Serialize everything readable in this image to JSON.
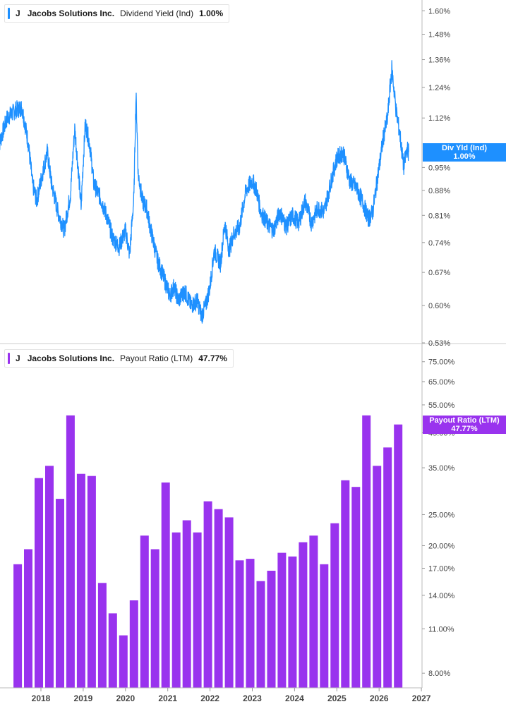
{
  "chart_data": [
    {
      "type": "line",
      "legend": {
        "ticker": "J",
        "company": "Jacobs Solutions Inc.",
        "metric": "Dividend Yield (Ind)",
        "value": "1.00%"
      },
      "color": "#1e90ff",
      "scale": "log",
      "ylim": [
        0.53,
        1.62
      ],
      "y_ticks": [
        "1.60%",
        "1.48%",
        "1.36%",
        "1.24%",
        "1.12%",
        "0.95%",
        "0.88%",
        "0.81%",
        "0.74%",
        "0.67%",
        "0.60%",
        "0.53%"
      ],
      "y_tick_values": [
        1.6,
        1.48,
        1.36,
        1.24,
        1.12,
        0.95,
        0.88,
        0.81,
        0.74,
        0.67,
        0.6,
        0.53
      ],
      "last_value_tag": {
        "label": "Div Yld (Ind)",
        "value": "1.00%",
        "y": 1.0
      },
      "grid": false,
      "series": [
        {
          "x": [
            2017.0,
            2017.2,
            2017.4,
            2017.55,
            2017.7,
            2017.8,
            2017.9,
            2018.05,
            2018.15,
            2018.25,
            2018.4,
            2018.55,
            2018.7,
            2018.8,
            2018.95,
            2019.05,
            2019.15,
            2019.25,
            2019.4,
            2019.55,
            2019.7,
            2019.85,
            2020.0,
            2020.1,
            2020.2,
            2020.25,
            2020.3,
            2020.4,
            2020.5,
            2020.6,
            2020.75,
            2020.9,
            2021.05,
            2021.15,
            2021.25,
            2021.4,
            2021.55,
            2021.7,
            2021.8,
            2021.9,
            2022.0,
            2022.1,
            2022.25,
            2022.35,
            2022.45,
            2022.55,
            2022.7,
            2022.85,
            2023.0,
            2023.1,
            2023.2,
            2023.35,
            2023.5,
            2023.65,
            2023.8,
            2023.95,
            2024.1,
            2024.25,
            2024.4,
            2024.55,
            2024.7,
            2024.85,
            2025.0,
            2025.15,
            2025.3,
            2025.45,
            2025.6,
            2025.75,
            2025.85,
            2026.0,
            2026.1,
            2026.2,
            2026.3,
            2026.4,
            2026.5,
            2026.58,
            2026.66,
            2026.7
          ],
          "y": [
            1.02,
            1.12,
            1.15,
            1.16,
            1.03,
            0.9,
            0.85,
            0.94,
            1.0,
            0.9,
            0.82,
            0.77,
            0.87,
            1.08,
            0.83,
            1.1,
            1.03,
            0.9,
            0.86,
            0.81,
            0.75,
            0.73,
            0.77,
            0.71,
            0.86,
            1.21,
            0.93,
            0.85,
            0.83,
            0.77,
            0.7,
            0.66,
            0.62,
            0.64,
            0.61,
            0.63,
            0.6,
            0.61,
            0.58,
            0.6,
            0.64,
            0.72,
            0.69,
            0.79,
            0.72,
            0.76,
            0.78,
            0.88,
            0.91,
            0.88,
            0.82,
            0.79,
            0.77,
            0.82,
            0.78,
            0.81,
            0.79,
            0.85,
            0.79,
            0.83,
            0.82,
            0.9,
            0.98,
            1.0,
            0.91,
            0.89,
            0.85,
            0.8,
            0.82,
            0.95,
            1.05,
            1.12,
            1.32,
            1.15,
            1.05,
            0.95,
            1.01,
            1.0
          ]
        }
      ]
    },
    {
      "type": "bar",
      "legend": {
        "ticker": "J",
        "company": "Jacobs Solutions Inc.",
        "metric": "Payout Ratio (LTM)",
        "value": "47.77%"
      },
      "color": "#9933ee",
      "scale": "log",
      "ylim": [
        7.2,
        78
      ],
      "y_ticks": [
        "75.00%",
        "65.00%",
        "55.00%",
        "45.00%",
        "35.00%",
        "25.00%",
        "20.00%",
        "17.00%",
        "14.00%",
        "11.00%",
        "8.00%"
      ],
      "y_tick_values": [
        75,
        65,
        55,
        45,
        35,
        25,
        20,
        17,
        14,
        11,
        8
      ],
      "last_value_tag": {
        "label": "Payout Ratio (LTM)",
        "value": "47.77%",
        "y": 47.77
      },
      "grid": false,
      "x": [
        2017.2,
        2017.45,
        2017.7,
        2017.95,
        2018.2,
        2018.45,
        2018.7,
        2018.95,
        2019.2,
        2019.45,
        2019.7,
        2019.95,
        2020.2,
        2020.45,
        2020.7,
        2020.95,
        2021.2,
        2021.45,
        2021.7,
        2021.95,
        2022.2,
        2022.45,
        2022.7,
        2022.95,
        2023.2,
        2023.45,
        2023.7,
        2023.95,
        2024.2,
        2024.45,
        2024.7,
        2024.95,
        2025.2,
        2025.45,
        2025.7,
        2025.95,
        2026.2,
        2026.45
      ],
      "values": [
        7.0,
        17.5,
        19.5,
        32.5,
        35.5,
        28.0,
        51.0,
        33.5,
        33.0,
        15.3,
        12.3,
        10.5,
        13.5,
        21.5,
        19.5,
        31.5,
        22.0,
        24.0,
        22.0,
        27.5,
        26.0,
        24.5,
        18.0,
        18.2,
        15.5,
        16.7,
        19.0,
        18.5,
        20.5,
        21.5,
        17.5,
        23.5,
        32.0,
        30.5,
        51.0,
        35.5,
        40.5,
        47.77
      ]
    }
  ],
  "x_axis": {
    "labels": [
      "2018",
      "2019",
      "2020",
      "2021",
      "2022",
      "2023",
      "2024",
      "2025",
      "2026",
      "2027"
    ],
    "values": [
      2018,
      2019,
      2020,
      2021,
      2022,
      2023,
      2024,
      2025,
      2026,
      2027
    ],
    "range": [
      2017.0,
      2027.0
    ]
  },
  "colors": {
    "accent_blue": "#1e90ff",
    "accent_purple": "#9933ee",
    "axis": "#888888",
    "text": "#444444"
  }
}
